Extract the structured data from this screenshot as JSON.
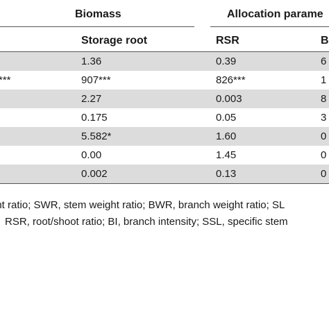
{
  "table": {
    "group_headers": {
      "biomass": "Biomass",
      "allocation": "Allocation parame"
    },
    "column_headers": {
      "storage_root": "Storage root",
      "rsr": "RSR",
      "next": "B"
    },
    "rows": [
      {
        "left": "",
        "storage_root": "1.36",
        "rsr": "0.39",
        "next": "6"
      },
      {
        "left": "***",
        "storage_root": "907***",
        "rsr": "826***",
        "next": "1"
      },
      {
        "left": "",
        "storage_root": "2.27",
        "rsr": "0.003",
        "next": "8"
      },
      {
        "left": "",
        "storage_root": "0.175",
        "rsr": "0.05",
        "next": "3"
      },
      {
        "left": "",
        "storage_root": "5.582*",
        "rsr": "1.60",
        "next": "0"
      },
      {
        "left": "",
        "storage_root": "0.00",
        "rsr": "1.45",
        "next": "0"
      },
      {
        "left": "",
        "storage_root": "0.002",
        "rsr": "0.13",
        "next": "0"
      }
    ],
    "row_colors": {
      "shaded": "#dcdcdc",
      "plain": "#ffffff"
    }
  },
  "footnote": {
    "line1": "ght ratio; SWR, stem weight ratio; BWR, branch weight ratio; SL",
    "line2": "RSR, root/shoot ratio; BI, branch intensity; SSL, specific stem"
  }
}
